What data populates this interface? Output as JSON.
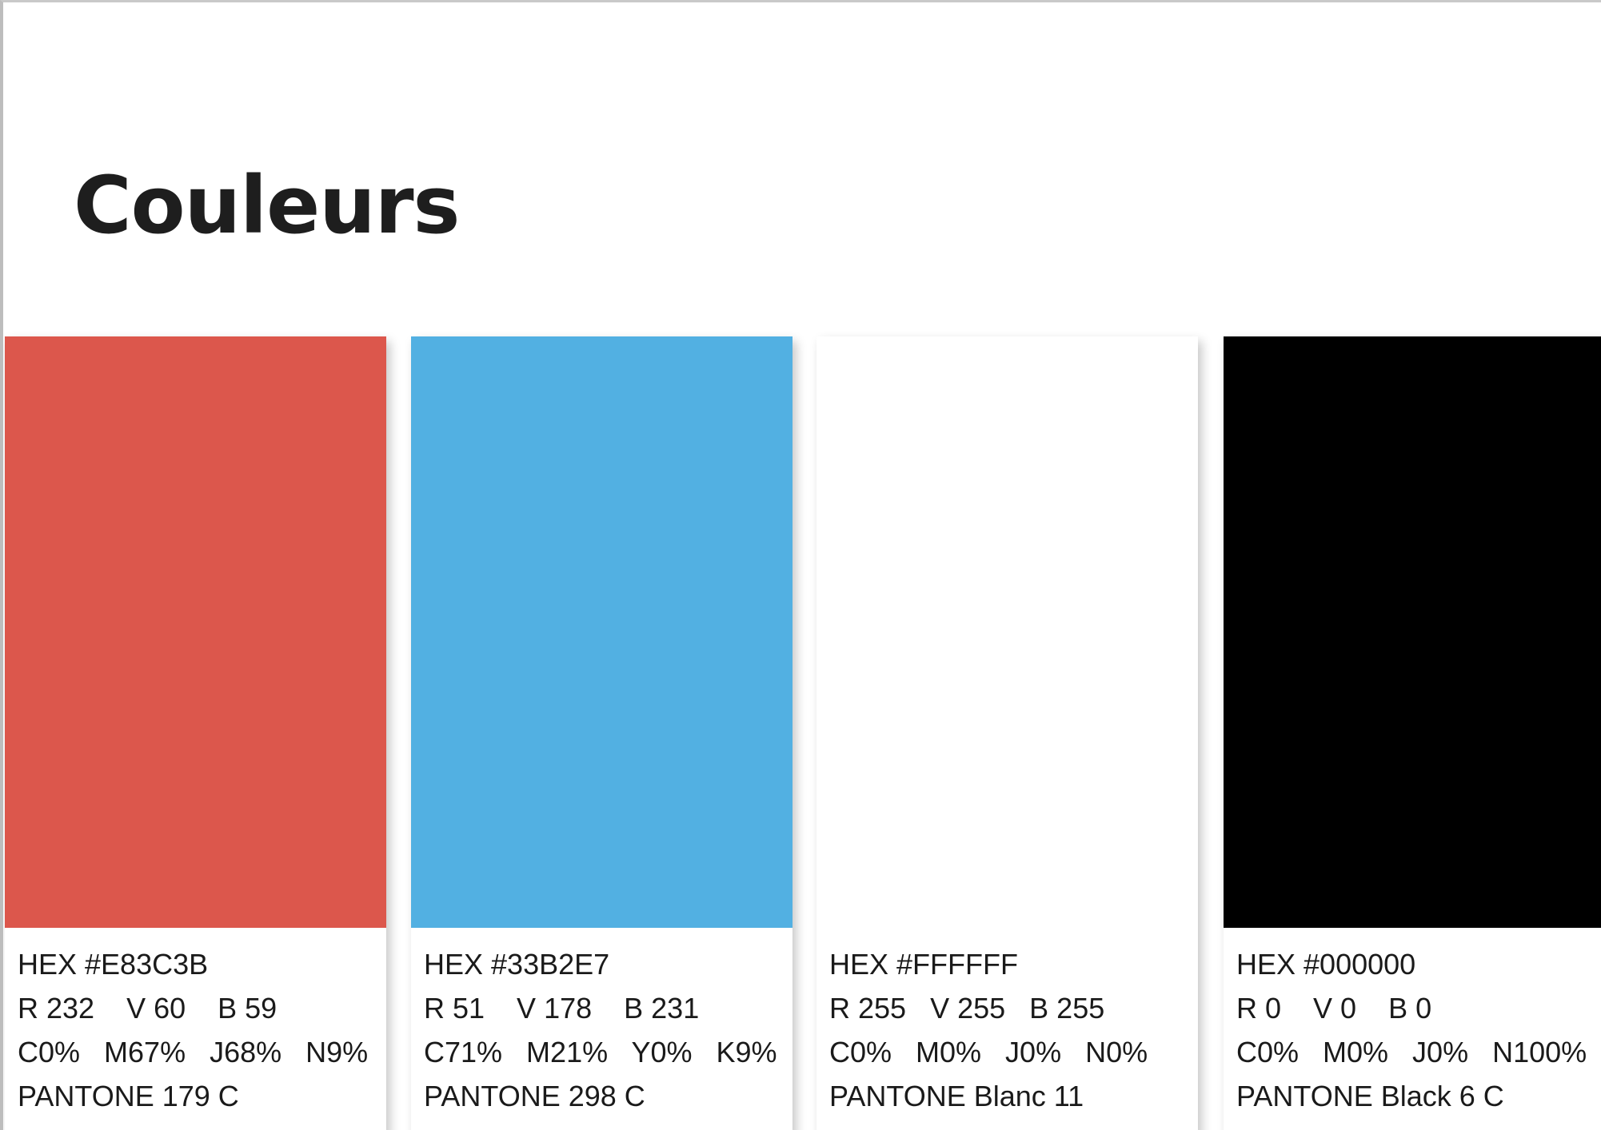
{
  "title": "Couleurs",
  "colors": [
    {
      "swatch": "#DC574C",
      "hex": "HEX #E83C3B",
      "rvb": "R 232    V 60    B 59",
      "cmjn": "C0%   M67%   J68%   N9%",
      "pantone": "PANTONE 179 C"
    },
    {
      "swatch": "#52B0E2",
      "hex": "HEX #33B2E7",
      "rvb": "R 51    V 178    B 231",
      "cmjn": "C71%   M21%   Y0%   K9%",
      "pantone": "PANTONE 298 C"
    },
    {
      "swatch": "#FFFFFF",
      "hex": "HEX #FFFFFF",
      "rvb": "R 255   V 255   B 255",
      "cmjn": "C0%   M0%   J0%   N0%",
      "pantone": "PANTONE Blanc 11"
    },
    {
      "swatch": "#000000",
      "hex": "HEX #000000",
      "rvb": "R 0    V 0    B 0",
      "cmjn": "C0%   M0%   J0%   N100%",
      "pantone": "PANTONE Black 6 C"
    }
  ]
}
